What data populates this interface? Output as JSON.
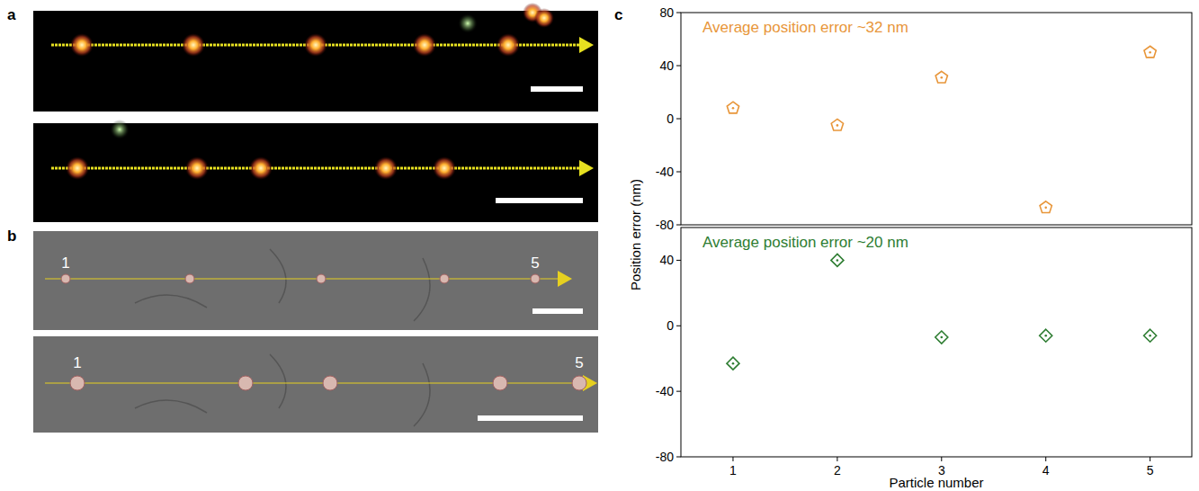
{
  "figure": {
    "panels": {
      "a": {
        "letter": "a"
      },
      "b": {
        "letter": "b",
        "particle_labels": [
          [
            "1",
            "5"
          ],
          [
            "1",
            "5"
          ]
        ]
      },
      "c": {
        "letter": "c"
      }
    }
  },
  "chart_data": [
    {
      "type": "scatter",
      "annotation": "Average position error ~32 nm",
      "y_label": "Position error (nm)",
      "x": [
        1,
        2,
        3,
        4,
        5
      ],
      "values": [
        8,
        -5,
        31,
        -67,
        50
      ],
      "color": "#e8963a",
      "marker": "pentagon",
      "xlim": [
        0.5,
        5.4
      ],
      "ylim": [
        -80,
        80
      ],
      "yticks": [
        -80,
        -40,
        0,
        40,
        80
      ],
      "tick_labels": "y"
    },
    {
      "type": "scatter",
      "annotation": "Average position error ~20 nm",
      "x_label": "Particle number",
      "x": [
        1,
        2,
        3,
        4,
        5
      ],
      "values": [
        -23,
        40,
        -7,
        -6,
        -6
      ],
      "color": "#2e7d32",
      "marker": "diamond",
      "xlim": [
        0.5,
        5.4
      ],
      "ylim": [
        -80,
        60
      ],
      "xticks": [
        1,
        2,
        3,
        4,
        5
      ],
      "yticks": [
        -80,
        -40,
        0,
        40
      ]
    }
  ]
}
